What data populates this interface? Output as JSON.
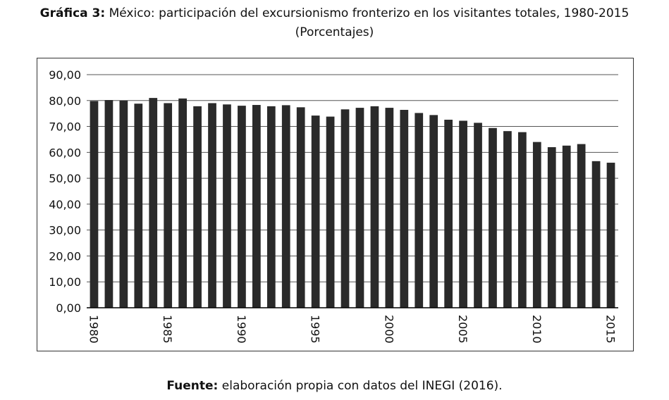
{
  "title": {
    "lead": "Gráfica 3:",
    "text": "México: participación del excursionismo fronterizo en los visitantes totales, 1980-2015",
    "subtitle": "(Porcentajes)"
  },
  "source": {
    "label": "Fuente:",
    "text": "elaboración propia con datos del INEGI (2016)."
  },
  "colors": {
    "bar": "#2a2a2a",
    "grid": "#555555",
    "text": "#111111"
  },
  "chart_data": {
    "type": "bar",
    "title": "México: participación del excursionismo fronterizo en los visitantes totales, 1980-2015",
    "subtitle": "(Porcentajes)",
    "xlabel": "",
    "ylabel": "",
    "ylim": [
      0,
      90
    ],
    "yticks": [
      "0,00",
      "10,00",
      "20,00",
      "30,00",
      "40,00",
      "50,00",
      "60,00",
      "70,00",
      "80,00",
      "90,00"
    ],
    "xtick_labels": [
      "1980",
      "1985",
      "1990",
      "1995",
      "2000",
      "2005",
      "2010",
      "2015"
    ],
    "grid": true,
    "categories": [
      1980,
      1981,
      1982,
      1983,
      1984,
      1985,
      1986,
      1987,
      1988,
      1989,
      1990,
      1991,
      1992,
      1993,
      1994,
      1995,
      1996,
      1997,
      1998,
      1999,
      2000,
      2001,
      2002,
      2003,
      2004,
      2005,
      2006,
      2007,
      2008,
      2009,
      2010,
      2011,
      2012,
      2013,
      2014,
      2015
    ],
    "values": [
      79.8,
      80.2,
      80.0,
      78.8,
      81.0,
      79.0,
      80.8,
      77.8,
      79.0,
      78.5,
      78.0,
      78.3,
      77.8,
      78.2,
      77.4,
      74.2,
      73.8,
      76.6,
      77.2,
      77.8,
      77.2,
      76.4,
      75.2,
      74.4,
      72.6,
      72.2,
      71.4,
      69.4,
      68.2,
      67.8,
      64.0,
      62.0,
      62.6,
      63.2,
      56.6,
      56.0
    ]
  }
}
